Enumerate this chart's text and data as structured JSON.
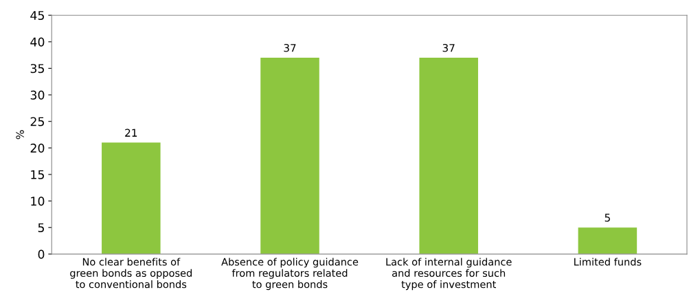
{
  "chart_data": {
    "type": "bar",
    "ylabel": "%",
    "categories": [
      "No clear benefits of\ngreen bonds as opposed\nto conventional bonds",
      "Absence of policy guidance\nfrom regulators related\nto green bonds",
      "Lack of internal guidance\nand resources for such\ntype of investment",
      "Limited funds"
    ],
    "values": [
      21,
      37,
      37,
      5
    ],
    "color": "#8dc63f",
    "ylim": [
      0,
      45
    ],
    "yticks": [
      0,
      5,
      10,
      15,
      20,
      25,
      30,
      35,
      40,
      45
    ],
    "data_labels": true,
    "grid": false
  }
}
